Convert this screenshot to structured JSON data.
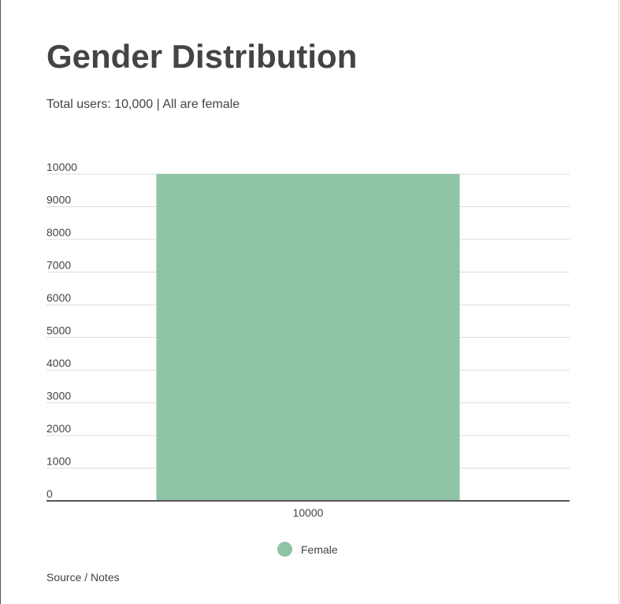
{
  "header": {
    "title": "Gender Distribution",
    "subtitle": "Total users: 10,000 | All are female"
  },
  "footer": {
    "source": "Source / Notes"
  },
  "colors": {
    "bar": "#8fc3a6",
    "grid": "#dddddd",
    "axis": "#555555",
    "text": "#444444"
  },
  "chart_data": {
    "type": "bar",
    "categories": [
      "10000"
    ],
    "series": [
      {
        "name": "Female",
        "values": [
          10000
        ]
      }
    ],
    "yticks": [
      "0",
      "1000",
      "2000",
      "3000",
      "4000",
      "5000",
      "6000",
      "7000",
      "8000",
      "9000",
      "10000"
    ],
    "ylim": [
      0,
      10000
    ],
    "grid": true,
    "legend": "bottom"
  }
}
